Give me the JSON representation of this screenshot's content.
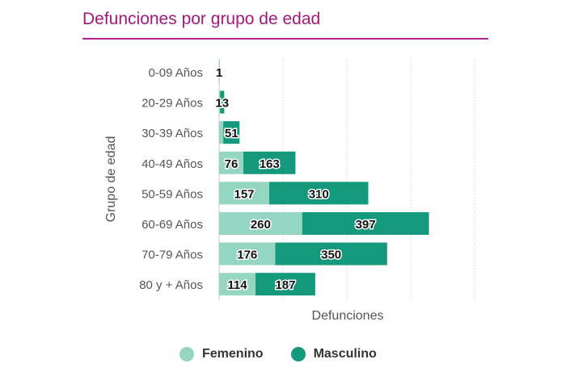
{
  "title": "Defunciones por grupo de edad",
  "colors": {
    "title": "#a3187e",
    "femenino": "#95d6c3",
    "masculino": "#14997c"
  },
  "chart_data": {
    "type": "bar",
    "orientation": "horizontal",
    "stacked": true,
    "title": "Defunciones por grupo de edad",
    "xlabel": "Defunciones",
    "ylabel": "Grupo de edad",
    "categories": [
      "0-09 Años",
      "20-29 Años",
      "30-39 Años",
      "40-49 Años",
      "50-59 Años",
      "60-69 Años",
      "70-79 Años",
      "80 y + Años"
    ],
    "series": [
      {
        "name": "Femenino",
        "values": [
          0,
          3,
          13,
          76,
          157,
          260,
          176,
          114
        ],
        "labels": [
          "",
          "",
          "",
          "76",
          "157",
          "260",
          "176",
          "114"
        ]
      },
      {
        "name": "Masculino",
        "values": [
          1,
          13,
          51,
          163,
          310,
          397,
          350,
          187
        ],
        "labels": [
          "1",
          "13",
          "51",
          "163",
          "310",
          "397",
          "350",
          "187"
        ]
      }
    ],
    "xlim": [
      0,
      800
    ],
    "grid": true,
    "legend_position": "bottom"
  }
}
